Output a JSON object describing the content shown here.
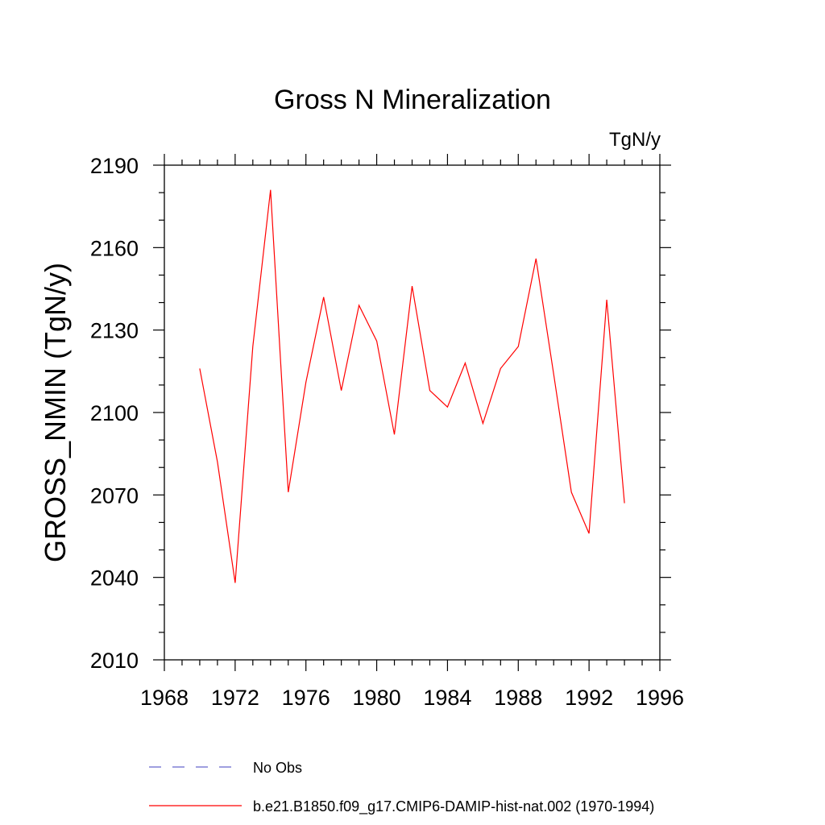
{
  "chart_data": {
    "type": "line",
    "title": "Gross N Mineralization",
    "units_label": "TgN/y",
    "xlabel": "",
    "ylabel": "GROSS_NMIN  (TgN/y)",
    "xlim": [
      1968,
      1996
    ],
    "ylim": [
      2010,
      2190
    ],
    "x_ticks": [
      1968,
      1972,
      1976,
      1980,
      1984,
      1988,
      1992,
      1996
    ],
    "y_ticks": [
      2010,
      2040,
      2070,
      2100,
      2130,
      2160,
      2190
    ],
    "grid": false,
    "legend_position": "bottom",
    "series": [
      {
        "name": "No Obs",
        "color": "#6666cc",
        "dashed": true,
        "x": [],
        "y": []
      },
      {
        "name": "b.e21.B1850.f09_g17.CMIP6-DAMIP-hist-nat.002 (1970-1994)",
        "color": "#ff0000",
        "dashed": false,
        "x": [
          1970,
          1971,
          1972,
          1973,
          1974,
          1975,
          1976,
          1977,
          1978,
          1979,
          1980,
          1981,
          1982,
          1983,
          1984,
          1985,
          1986,
          1987,
          1988,
          1989,
          1990,
          1991,
          1992,
          1993,
          1994
        ],
        "y": [
          2116,
          2082,
          2038,
          2124,
          2181,
          2071,
          2111,
          2142,
          2108,
          2139,
          2126,
          2092,
          2146,
          2108,
          2102,
          2118,
          2096,
          2116,
          2124,
          2156,
          2114,
          2071,
          2056,
          2141,
          2067
        ]
      }
    ]
  }
}
